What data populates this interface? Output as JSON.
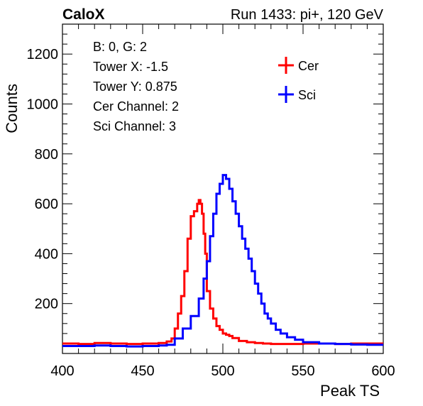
{
  "header": {
    "left_title": "CaloX",
    "right_title": "Run 1433: pi+, 120 GeV"
  },
  "info_box": {
    "lines": [
      "B: 0, G: 2",
      "Tower X: -1.5",
      "Tower Y: 0.875",
      "Cer Channel: 2",
      "Sci Channel: 3"
    ]
  },
  "chart_data": {
    "type": "line",
    "xlabel": "Peak TS",
    "ylabel": "Counts",
    "xlim": [
      400,
      600
    ],
    "ylim": [
      0,
      1320
    ],
    "x_ticks": [
      "400",
      "450",
      "500",
      "550",
      "600"
    ],
    "y_ticks": [
      "200",
      "400",
      "600",
      "800",
      "1000",
      "1200"
    ],
    "legend_position": "top-right",
    "series": [
      {
        "name": "Cer",
        "color": "#ff0000",
        "x": [
          400,
          410,
          420,
          430,
          440,
          450,
          460,
          465,
          468,
          470,
          472,
          474,
          476,
          478,
          480,
          482,
          484,
          485,
          486,
          487,
          488,
          489,
          490,
          492,
          494,
          496,
          498,
          500,
          502,
          504,
          506,
          510,
          515,
          520,
          525,
          530,
          540,
          550,
          560,
          570,
          580,
          590,
          600
        ],
        "y": [
          40,
          38,
          42,
          40,
          38,
          40,
          42,
          48,
          60,
          100,
          160,
          230,
          330,
          460,
          550,
          570,
          600,
          615,
          600,
          560,
          480,
          400,
          250,
          180,
          140,
          110,
          95,
          80,
          75,
          70,
          62,
          50,
          45,
          42,
          40,
          38,
          38,
          40,
          40,
          38,
          40,
          40,
          40
        ]
      },
      {
        "name": "Sci",
        "color": "#0000ff",
        "x": [
          400,
          410,
          420,
          430,
          440,
          450,
          460,
          465,
          470,
          475,
          480,
          485,
          488,
          490,
          492,
          494,
          496,
          498,
          500,
          502,
          504,
          506,
          508,
          510,
          512,
          514,
          516,
          518,
          520,
          522,
          524,
          526,
          528,
          530,
          533,
          536,
          540,
          545,
          550,
          560,
          570,
          580,
          590,
          600
        ],
        "y": [
          30,
          30,
          32,
          30,
          28,
          30,
          32,
          35,
          60,
          100,
          150,
          220,
          300,
          370,
          470,
          560,
          640,
          680,
          715,
          700,
          660,
          610,
          560,
          510,
          460,
          420,
          380,
          330,
          280,
          240,
          200,
          160,
          140,
          120,
          95,
          80,
          65,
          55,
          45,
          40,
          38,
          36,
          35,
          35
        ]
      }
    ]
  }
}
